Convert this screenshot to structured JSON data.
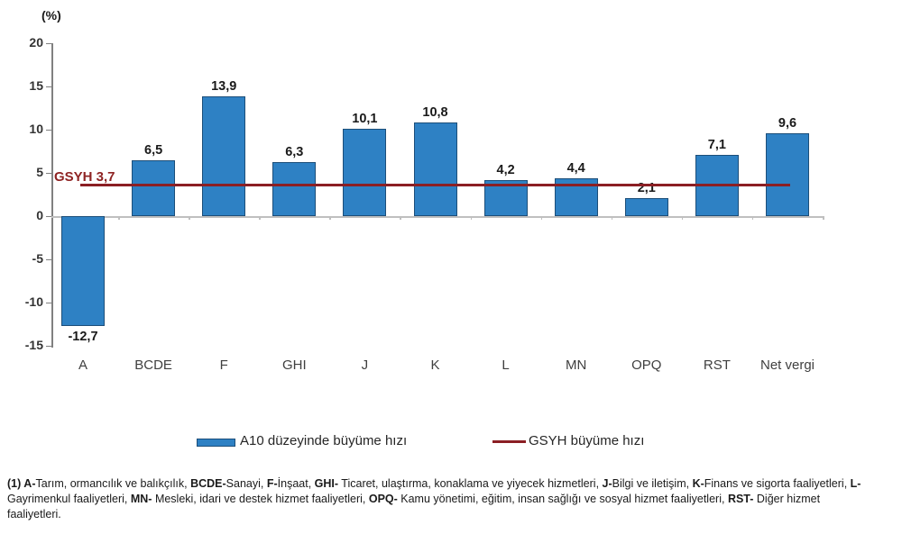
{
  "chart_data": {
    "type": "bar",
    "title": "",
    "unit_label": "(%)",
    "xlabel": "",
    "ylabel": "(%)",
    "categories": [
      "A",
      "BCDE",
      "F",
      "GHI",
      "J",
      "K",
      "L",
      "MN",
      "OPQ",
      "RST",
      "Net vergi"
    ],
    "series": [
      {
        "name": "A10 düzeyinde büyüme hızı",
        "values": [
          -12.7,
          6.5,
          13.9,
          6.3,
          10.1,
          10.8,
          4.2,
          4.4,
          2.1,
          7.1,
          9.6
        ],
        "value_labels": [
          "-12,7",
          "6,5",
          "13,9",
          "6,3",
          "10,1",
          "10,8",
          "4,2",
          "4,4",
          "2,1",
          "7,1",
          "9,6"
        ]
      }
    ],
    "reference_line": {
      "name": "GSYH büyüme hızı",
      "value": 3.7,
      "label": "GSYH 3,7"
    },
    "ylim": [
      -15,
      20
    ],
    "yticks": [
      20,
      15,
      10,
      5,
      0,
      -5,
      -10,
      -15
    ],
    "ytick_labels": [
      "20",
      "15",
      "10",
      "5",
      "0",
      "-5",
      "-10",
      "-15"
    ],
    "grid": "off",
    "legend_position": "bottom",
    "colors": {
      "bar_fill": "#2E81C4",
      "bar_border": "#1C4E79",
      "reference_line": "#8B1F24",
      "reference_text": "#8E2323",
      "axis": "#808080",
      "baseline": "#BFBFBF"
    }
  },
  "legend": {
    "items": [
      {
        "label": "A10 düzeyinde büyüme hızı",
        "swatch": "bar"
      },
      {
        "label": "GSYH büyüme hızı",
        "swatch": "line"
      }
    ]
  },
  "footnote": {
    "segments": [
      {
        "text": "(1) ",
        "bold": true
      },
      {
        "text": "A-",
        "bold": true
      },
      {
        "text": "Tarım, ormancılık ve balıkçılık, ",
        "bold": false
      },
      {
        "text": "BCDE-",
        "bold": true
      },
      {
        "text": "Sanayi, ",
        "bold": false
      },
      {
        "text": "F-",
        "bold": true
      },
      {
        "text": "İnşaat, ",
        "bold": false
      },
      {
        "text": "GHI-",
        "bold": true
      },
      {
        "text": " Ticaret, ulaştırma, konaklama ve yiyecek hizmetleri, ",
        "bold": false
      },
      {
        "text": "J-",
        "bold": true
      },
      {
        "text": "Bilgi ve iletişim, ",
        "bold": false
      },
      {
        "text": "K-",
        "bold": true
      },
      {
        "text": "Finans ve sigorta faaliyetleri, ",
        "bold": false
      },
      {
        "text": "L-",
        "bold": true
      },
      {
        "text": "Gayrimenkul faaliyetleri, ",
        "bold": false
      },
      {
        "text": "MN-",
        "bold": true
      },
      {
        "text": " Mesleki, idari ve destek hizmet faaliyetleri, ",
        "bold": false
      },
      {
        "text": "OPQ-",
        "bold": true
      },
      {
        "text": " Kamu yönetimi, eğitim, insan sağlığı ve sosyal hizmet faaliyetleri, ",
        "bold": false
      },
      {
        "text": "RST-",
        "bold": true
      },
      {
        "text": " Diğer hizmet faaliyetleri.",
        "bold": false
      }
    ]
  }
}
